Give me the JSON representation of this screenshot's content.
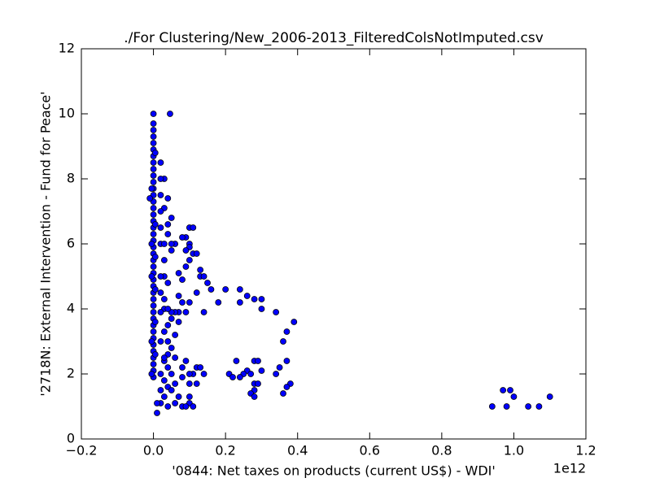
{
  "chart_data": {
    "type": "scatter",
    "title": "./For Clustering/New_2006-2013_FilteredColsNotImputed.csv",
    "x_label": "'0844: Net taxes on products  (current US$) - WDI'",
    "x_offset_label": "1e12",
    "y_label": "'2718N: External Intervention - Fund for Peace'",
    "xlim": [
      -0.2,
      1.2
    ],
    "ylim": [
      0,
      12
    ],
    "xticks": [
      {
        "value": -0.2,
        "label": "−0.2"
      },
      {
        "value": 0,
        "label": "0.0"
      },
      0.2,
      0.4,
      0.6,
      0.8,
      {
        "value": 1,
        "label": "1.0"
      },
      1.2
    ],
    "yticks": [
      0,
      2,
      4,
      6,
      8,
      10,
      12
    ],
    "grid": false,
    "series": [
      {
        "color": "#0000ff",
        "x": [
          0,
          0,
          0,
          0,
          0,
          0,
          0,
          0,
          0,
          0,
          0,
          0,
          0,
          0,
          0,
          0,
          0,
          0,
          0,
          0,
          0,
          0,
          0,
          0,
          0,
          0,
          0,
          0,
          0,
          0,
          0,
          0,
          0,
          0,
          0,
          0,
          0,
          0,
          0,
          0,
          0,
          -0.005,
          -0.005,
          -0.005,
          -0.005,
          -0.005,
          0.005,
          0.005,
          0.005,
          0.005,
          0.005,
          0.005,
          0.046,
          -0.01,
          0.1,
          0.11,
          0.09,
          0.08,
          0.1,
          0.11,
          0.12,
          0.1,
          0.09,
          0.13,
          0.13,
          0.14,
          0.15,
          0.16,
          0.12,
          0.2,
          0.24,
          0.26,
          0.28,
          0.3,
          0.24,
          0.18,
          0.3,
          0.34,
          0.14,
          0.39,
          0.37,
          0.36,
          0.37,
          0.35,
          0.34,
          0.3,
          0.28,
          0.29,
          0.23,
          0.26,
          0.21,
          0.22,
          0.25,
          0.27,
          0.24,
          0.28,
          0.29,
          0.28,
          0.27,
          0.28,
          0.36,
          0.38,
          0.37,
          0.12,
          0.13,
          0.14,
          0.11,
          0.1,
          0.09,
          0.08,
          0.1,
          0.12,
          0.1,
          0.11,
          0.1,
          0.08,
          0.09,
          0.07,
          0.06,
          0.06,
          0.08,
          0.07,
          0.07,
          0.08,
          0.1,
          0.09,
          0.07,
          0.06,
          0.05,
          0.08,
          0.07,
          0.1,
          0.09,
          0.06,
          0.05,
          0.05,
          0.04,
          0.04,
          0.03,
          0.03,
          0.02,
          0.05,
          0.04,
          0.03,
          0.03,
          0.04,
          0.03,
          0.03,
          0.04,
          0.05,
          0.04,
          0.03,
          0.04,
          0.05,
          0.04,
          0.03,
          0.04,
          0.05,
          0.03,
          0.04,
          0.05,
          0.03,
          0.02,
          0.04,
          0.01,
          0.01,
          0.02,
          0.02,
          0.02,
          0.02,
          0.02,
          0.02,
          0.02,
          0.02,
          0.02,
          0.02,
          0.02,
          0.03,
          0.06,
          0.06,
          0.03,
          0.94,
          0.97,
          0.98,
          0.99,
          1.0,
          1.04,
          1.07,
          1.1
        ],
        "y": [
          1.9,
          2.1,
          2.3,
          2.5,
          2.7,
          2.9,
          3.1,
          3.3,
          3.5,
          3.7,
          3.9,
          4.1,
          4.3,
          4.5,
          4.7,
          4.9,
          5.1,
          5.3,
          5.5,
          5.7,
          5.9,
          6.1,
          6.3,
          6.5,
          6.7,
          6.9,
          7.1,
          7.3,
          7.5,
          7.7,
          7.9,
          8.1,
          8.3,
          8.5,
          8.7,
          8.9,
          9.1,
          9.3,
          9.5,
          9.7,
          10,
          2.0,
          3.0,
          5.0,
          6.0,
          7.7,
          2.6,
          3.6,
          4.6,
          5.6,
          6.6,
          8.8,
          10,
          7.4,
          6.5,
          6.5,
          6.2,
          6.2,
          6.0,
          5.7,
          5.7,
          5.5,
          5.3,
          5.2,
          5.0,
          5.0,
          4.8,
          4.6,
          4.5,
          4.6,
          4.6,
          4.4,
          4.3,
          4.3,
          4.2,
          4.2,
          4.0,
          3.9,
          3.9,
          3.6,
          3.3,
          3.0,
          2.4,
          2.2,
          2.0,
          2.1,
          2.4,
          2.4,
          2.4,
          2.1,
          2.0,
          1.9,
          2.0,
          2.0,
          1.9,
          1.7,
          1.7,
          1.5,
          1.4,
          1.3,
          1.4,
          1.7,
          1.6,
          2.2,
          2.2,
          2.0,
          2.0,
          2.0,
          2.4,
          2.2,
          1.7,
          1.7,
          1.1,
          1.0,
          1.3,
          1.0,
          1.0,
          1.3,
          1.1,
          1.7,
          1.9,
          3.9,
          4.4,
          4.2,
          4.2,
          3.9,
          3.6,
          3.9,
          3.9,
          4.9,
          5.1,
          5.9,
          5.8,
          6.0,
          6.0,
          5.8,
          6.6,
          7.4,
          7.1,
          8.0,
          8.0,
          6.8,
          6.3,
          5.5,
          5.0,
          4.8,
          4.3,
          4.0,
          4.0,
          3.7,
          3.5,
          3.3,
          3.0,
          2.8,
          2.6,
          2.4,
          2.2,
          2.0,
          1.8,
          1.6,
          1.5,
          1.3,
          1.1,
          1.0,
          0.8,
          1.1,
          1.5,
          2.0,
          3.0,
          3.9,
          4.5,
          5.0,
          6.0,
          6.5,
          7.0,
          7.5,
          8.5,
          2.5,
          2.5,
          3.2,
          6.0,
          1.0,
          1.5,
          1.0,
          1.5,
          1.3,
          1.0,
          1.0,
          1.3
        ]
      }
    ]
  }
}
